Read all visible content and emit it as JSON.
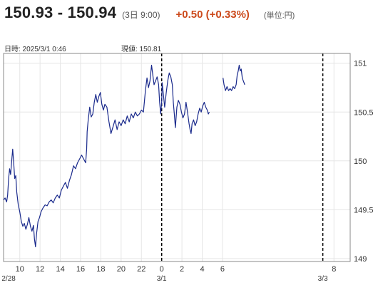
{
  "quote": {
    "bid_ask": "150.93 - 150.94",
    "time": "(3日 9:00)",
    "change": "+0.50 (+0.33%)",
    "units": "(単位:円)",
    "datetime_label": "日時: 2025/3/1  0:46",
    "current_label": "現値: 150.81"
  },
  "colors": {
    "line": "#1a2a8c",
    "grid": "#e6e6e6",
    "change": "#cc4a1c"
  },
  "chart_data": {
    "type": "line",
    "ylim": [
      148.97,
      151.1
    ],
    "xlim": [
      -1.6,
      32.6
    ],
    "y_ticks": [
      149,
      149.5,
      150,
      150.5,
      151
    ],
    "x_ticks": [
      {
        "x": 0,
        "label": "10"
      },
      {
        "x": 2,
        "label": "12"
      },
      {
        "x": 4,
        "label": "14"
      },
      {
        "x": 6,
        "label": "16"
      },
      {
        "x": 8,
        "label": "18"
      },
      {
        "x": 10,
        "label": "20"
      },
      {
        "x": 12,
        "label": "22"
      },
      {
        "x": 14,
        "label": "0"
      },
      {
        "x": 16,
        "label": "2"
      },
      {
        "x": 18,
        "label": "4"
      },
      {
        "x": 20,
        "label": "6"
      },
      {
        "x": 31,
        "label": "8"
      }
    ],
    "date_labels": [
      {
        "x": -1.1,
        "label": "2/28"
      },
      {
        "x": 14,
        "label": "3/1"
      },
      {
        "x": 29.9,
        "label": "3/3"
      }
    ],
    "day_separators": [
      14,
      29.9
    ],
    "series": [
      {
        "segments": [
          [
            [
              -1.6,
              149.6
            ],
            [
              -1.45,
              149.62
            ],
            [
              -1.3,
              149.58
            ],
            [
              -1.2,
              149.65
            ],
            [
              -1.1,
              149.82
            ],
            [
              -1.0,
              149.92
            ],
            [
              -0.9,
              149.86
            ],
            [
              -0.8,
              150.0
            ],
            [
              -0.7,
              150.12
            ],
            [
              -0.6,
              149.98
            ],
            [
              -0.5,
              149.82
            ],
            [
              -0.4,
              149.85
            ],
            [
              -0.3,
              149.68
            ],
            [
              -0.15,
              149.55
            ],
            [
              0.0,
              149.48
            ],
            [
              0.15,
              149.38
            ],
            [
              0.3,
              149.33
            ],
            [
              0.45,
              149.36
            ],
            [
              0.6,
              149.3
            ],
            [
              0.75,
              149.35
            ],
            [
              0.9,
              149.42
            ],
            [
              1.05,
              149.33
            ],
            [
              1.2,
              149.28
            ],
            [
              1.35,
              149.34
            ],
            [
              1.45,
              149.2
            ],
            [
              1.55,
              149.12
            ],
            [
              1.65,
              149.25
            ],
            [
              1.8,
              149.38
            ],
            [
              1.95,
              149.42
            ],
            [
              2.1,
              149.48
            ],
            [
              2.3,
              149.52
            ],
            [
              2.5,
              149.55
            ],
            [
              2.7,
              149.54
            ],
            [
              2.9,
              149.58
            ],
            [
              3.1,
              149.6
            ],
            [
              3.3,
              149.57
            ],
            [
              3.5,
              149.62
            ],
            [
              3.7,
              149.65
            ],
            [
              3.9,
              149.62
            ],
            [
              4.1,
              149.7
            ],
            [
              4.3,
              149.74
            ],
            [
              4.5,
              149.78
            ],
            [
              4.7,
              149.72
            ],
            [
              4.9,
              149.8
            ],
            [
              5.1,
              149.86
            ],
            [
              5.3,
              149.95
            ],
            [
              5.5,
              149.92
            ],
            [
              5.7,
              149.98
            ],
            [
              5.9,
              150.02
            ],
            [
              6.1,
              150.06
            ],
            [
              6.3,
              150.02
            ],
            [
              6.5,
              149.98
            ],
            [
              6.6,
              150.12
            ],
            [
              6.65,
              150.3
            ],
            [
              6.75,
              150.42
            ],
            [
              6.9,
              150.55
            ],
            [
              7.05,
              150.45
            ],
            [
              7.2,
              150.48
            ],
            [
              7.35,
              150.6
            ],
            [
              7.5,
              150.68
            ],
            [
              7.65,
              150.6
            ],
            [
              7.8,
              150.66
            ],
            [
              7.95,
              150.7
            ],
            [
              8.1,
              150.58
            ],
            [
              8.25,
              150.52
            ],
            [
              8.4,
              150.58
            ],
            [
              8.6,
              150.55
            ],
            [
              8.8,
              150.4
            ],
            [
              9.0,
              150.28
            ],
            [
              9.2,
              150.35
            ],
            [
              9.4,
              150.42
            ],
            [
              9.6,
              150.32
            ],
            [
              9.8,
              150.4
            ],
            [
              10.0,
              150.36
            ],
            [
              10.2,
              150.42
            ],
            [
              10.4,
              150.38
            ],
            [
              10.6,
              150.46
            ],
            [
              10.8,
              150.4
            ],
            [
              11.0,
              150.48
            ],
            [
              11.2,
              150.44
            ],
            [
              11.4,
              150.5
            ],
            [
              11.6,
              150.46
            ],
            [
              11.8,
              150.48
            ],
            [
              12.0,
              150.52
            ],
            [
              12.2,
              150.5
            ],
            [
              12.4,
              150.72
            ],
            [
              12.55,
              150.85
            ],
            [
              12.7,
              150.75
            ],
            [
              12.85,
              150.82
            ],
            [
              13.0,
              150.98
            ],
            [
              13.1,
              150.9
            ],
            [
              13.25,
              150.78
            ],
            [
              13.4,
              150.82
            ],
            [
              13.55,
              150.86
            ],
            [
              13.7,
              150.78
            ],
            [
              13.8,
              150.6
            ],
            [
              13.9,
              150.48
            ],
            [
              14.0,
              150.6
            ],
            [
              14.05,
              150.8
            ],
            [
              14.15,
              150.7
            ],
            [
              14.3,
              150.55
            ],
            [
              14.45,
              150.7
            ],
            [
              14.6,
              150.82
            ],
            [
              14.75,
              150.9
            ],
            [
              14.9,
              150.86
            ],
            [
              15.05,
              150.78
            ],
            [
              15.15,
              150.6
            ],
            [
              15.25,
              150.48
            ],
            [
              15.35,
              150.34
            ],
            [
              15.5,
              150.55
            ],
            [
              15.65,
              150.62
            ],
            [
              15.8,
              150.58
            ],
            [
              15.95,
              150.5
            ],
            [
              16.1,
              150.44
            ],
            [
              16.25,
              150.48
            ],
            [
              16.4,
              150.6
            ],
            [
              16.55,
              150.5
            ],
            [
              16.7,
              150.38
            ],
            [
              16.8,
              150.32
            ],
            [
              16.9,
              150.28
            ],
            [
              17.0,
              150.38
            ],
            [
              17.15,
              150.42
            ],
            [
              17.3,
              150.36
            ],
            [
              17.45,
              150.4
            ],
            [
              17.6,
              150.48
            ],
            [
              17.75,
              150.54
            ],
            [
              17.9,
              150.5
            ],
            [
              18.05,
              150.56
            ],
            [
              18.2,
              150.6
            ],
            [
              18.35,
              150.55
            ],
            [
              18.5,
              150.52
            ],
            [
              18.6,
              150.48
            ],
            [
              18.7,
              150.5
            ]
          ],
          [
            [
              20.05,
              150.85
            ],
            [
              20.15,
              150.78
            ],
            [
              20.3,
              150.72
            ],
            [
              20.45,
              150.76
            ],
            [
              20.6,
              150.72
            ],
            [
              20.75,
              150.74
            ],
            [
              20.9,
              150.72
            ],
            [
              21.05,
              150.76
            ],
            [
              21.2,
              150.74
            ],
            [
              21.35,
              150.78
            ],
            [
              21.45,
              150.88
            ],
            [
              21.55,
              150.92
            ],
            [
              21.65,
              150.98
            ],
            [
              21.75,
              150.92
            ],
            [
              21.85,
              150.94
            ],
            [
              21.95,
              150.85
            ],
            [
              22.05,
              150.82
            ],
            [
              22.2,
              150.78
            ]
          ]
        ]
      }
    ]
  }
}
